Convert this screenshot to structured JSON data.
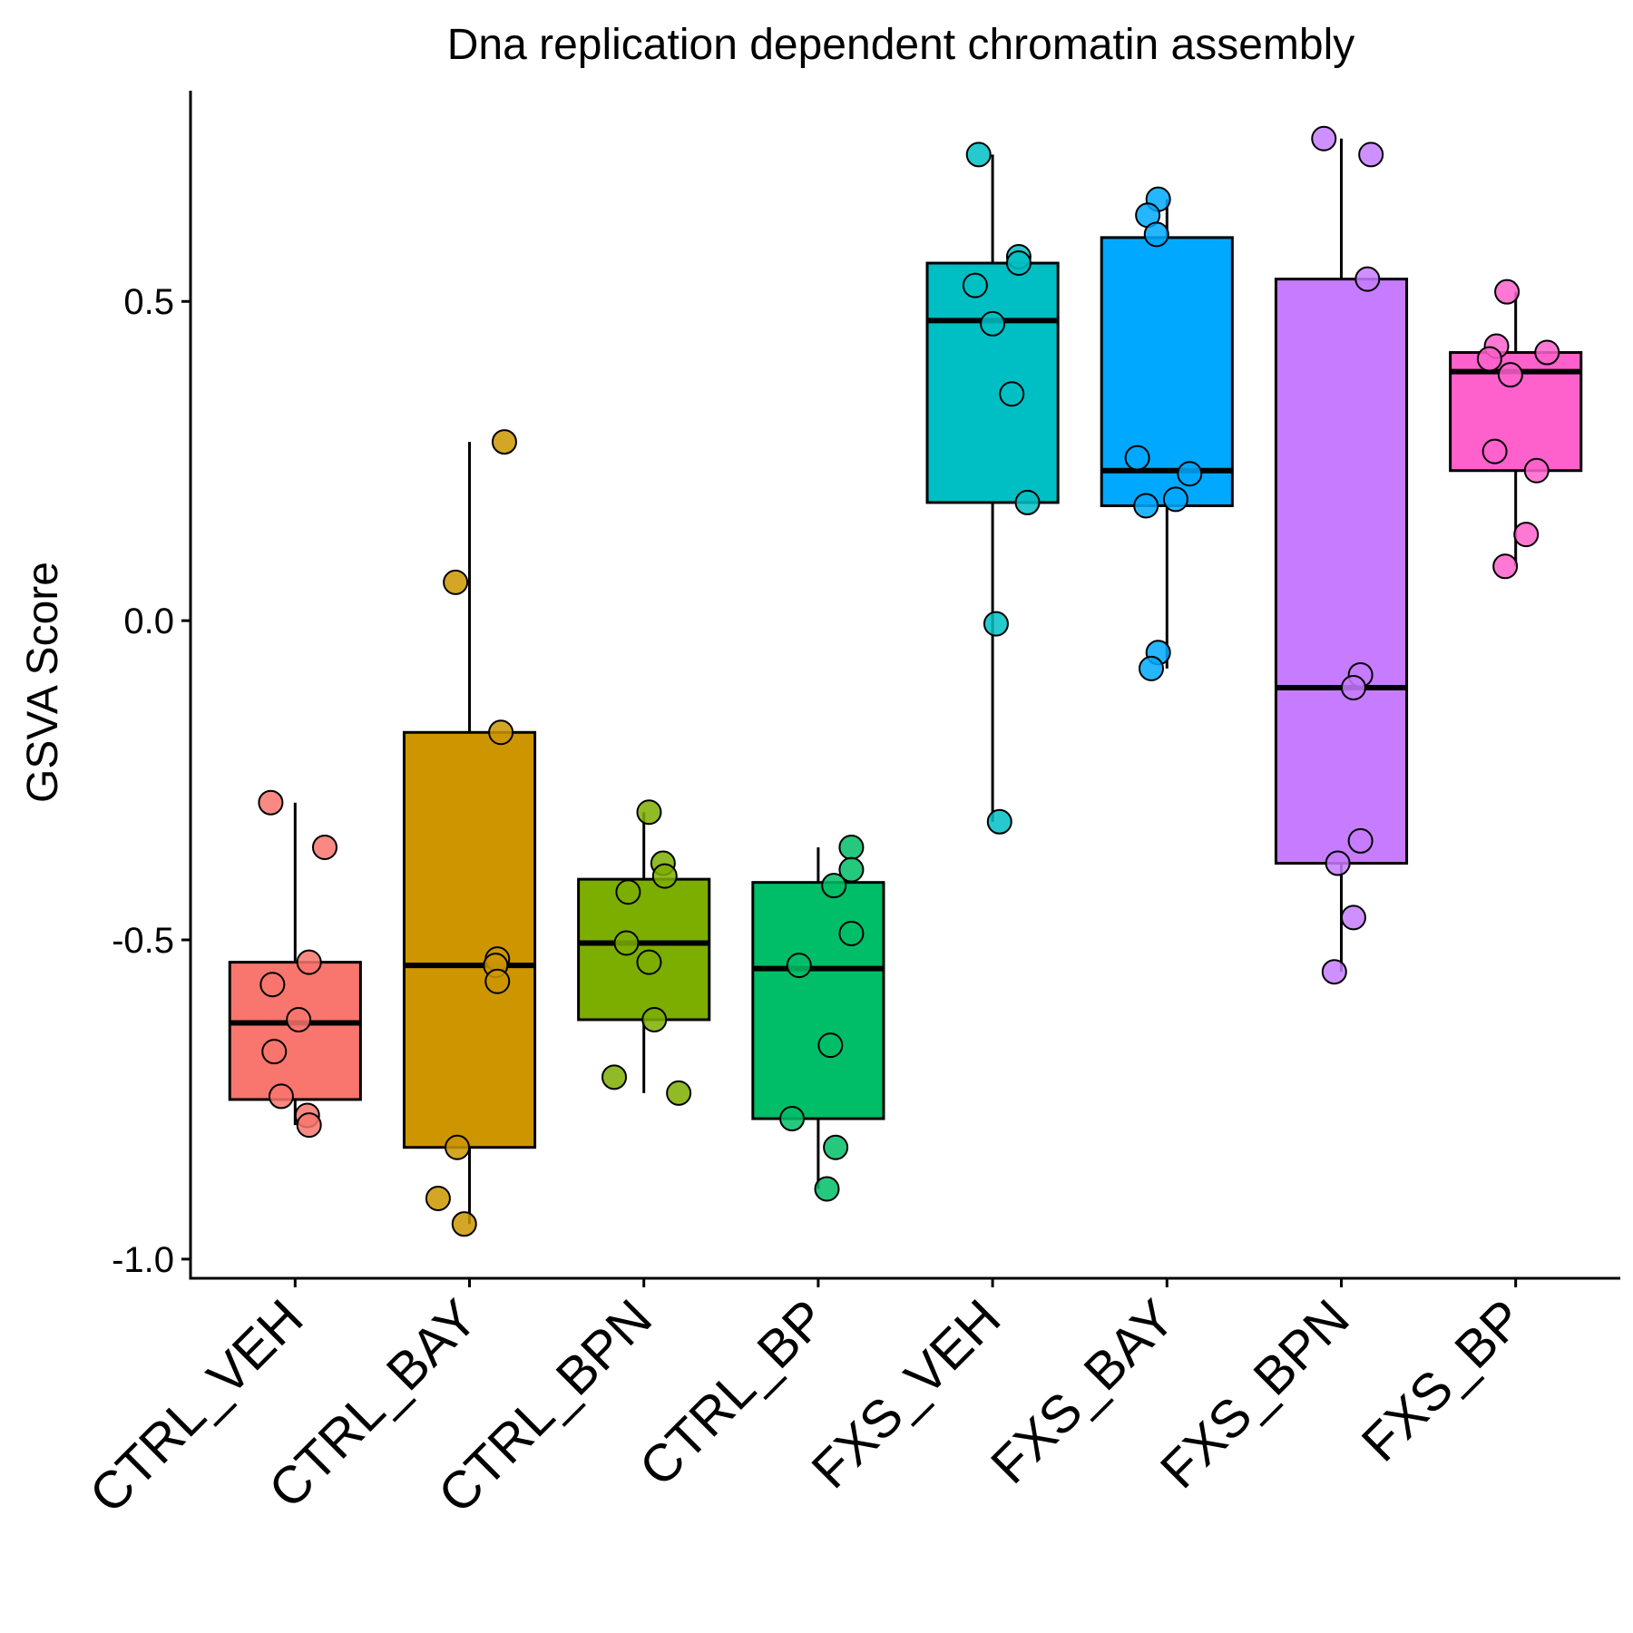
{
  "chart_data": {
    "type": "box",
    "title": "Dna replication dependent chromatin assembly",
    "xlabel": "",
    "ylabel": "GSVA Score",
    "ylim": [
      -1.03,
      0.83
    ],
    "yticks": [
      -1.0,
      -0.5,
      0.0,
      0.5
    ],
    "ytick_labels": [
      "-1.0",
      "-0.5",
      "0.0",
      "0.5"
    ],
    "grid": false,
    "legend": "none",
    "categories": [
      "CTRL_VEH",
      "CTRL_BAY",
      "CTRL_BPN",
      "CTRL_BP",
      "FXS_VEH",
      "FXS_BAY",
      "FXS_BPN",
      "FXS_BP"
    ],
    "colors": [
      "#F8766D",
      "#CD9600",
      "#7CAE00",
      "#00BE67",
      "#00BFC4",
      "#00A9FF",
      "#C77CFF",
      "#FF61CC"
    ],
    "boxes": [
      {
        "name": "CTRL_VEH",
        "whisker_low": -0.79,
        "q1": -0.75,
        "median": -0.63,
        "q3": -0.535,
        "whisker_high": -0.285
      },
      {
        "name": "CTRL_BAY",
        "whisker_low": -0.945,
        "q1": -0.825,
        "median": -0.54,
        "q3": -0.175,
        "whisker_high": 0.28
      },
      {
        "name": "CTRL_BPN",
        "whisker_low": -0.74,
        "q1": -0.625,
        "median": -0.505,
        "q3": -0.405,
        "whisker_high": -0.3
      },
      {
        "name": "CTRL_BP",
        "whisker_low": -0.89,
        "q1": -0.78,
        "median": -0.545,
        "q3": -0.41,
        "whisker_high": -0.355
      },
      {
        "name": "FXS_VEH",
        "whisker_low": -0.315,
        "q1": 0.185,
        "median": 0.47,
        "q3": 0.56,
        "whisker_high": 0.73
      },
      {
        "name": "FXS_BAY",
        "whisker_low": -0.075,
        "q1": 0.18,
        "median": 0.235,
        "q3": 0.6,
        "whisker_high": 0.66
      },
      {
        "name": "FXS_BPN",
        "whisker_low": -0.55,
        "q1": -0.38,
        "median": -0.105,
        "q3": 0.535,
        "whisker_high": 0.755
      },
      {
        "name": "FXS_BP",
        "whisker_low": 0.085,
        "q1": 0.235,
        "median": 0.39,
        "q3": 0.42,
        "whisker_high": 0.515
      }
    ],
    "points": [
      {
        "group": "CTRL_VEH",
        "jitter": -0.14,
        "y": -0.285
      },
      {
        "group": "CTRL_VEH",
        "jitter": 0.17,
        "y": -0.355
      },
      {
        "group": "CTRL_VEH",
        "jitter": 0.08,
        "y": -0.535
      },
      {
        "group": "CTRL_VEH",
        "jitter": -0.13,
        "y": -0.57
      },
      {
        "group": "CTRL_VEH",
        "jitter": 0.02,
        "y": -0.625
      },
      {
        "group": "CTRL_VEH",
        "jitter": -0.12,
        "y": -0.675
      },
      {
        "group": "CTRL_VEH",
        "jitter": -0.08,
        "y": -0.745
      },
      {
        "group": "CTRL_VEH",
        "jitter": 0.07,
        "y": -0.775
      },
      {
        "group": "CTRL_VEH",
        "jitter": 0.08,
        "y": -0.79
      },
      {
        "group": "CTRL_BAY",
        "jitter": 0.2,
        "y": 0.28
      },
      {
        "group": "CTRL_BAY",
        "jitter": -0.08,
        "y": 0.06
      },
      {
        "group": "CTRL_BAY",
        "jitter": 0.18,
        "y": -0.175
      },
      {
        "group": "CTRL_BAY",
        "jitter": 0.16,
        "y": -0.53
      },
      {
        "group": "CTRL_BAY",
        "jitter": 0.15,
        "y": -0.54
      },
      {
        "group": "CTRL_BAY",
        "jitter": 0.16,
        "y": -0.565
      },
      {
        "group": "CTRL_BAY",
        "jitter": -0.07,
        "y": -0.825
      },
      {
        "group": "CTRL_BAY",
        "jitter": -0.18,
        "y": -0.905
      },
      {
        "group": "CTRL_BAY",
        "jitter": -0.03,
        "y": -0.945
      },
      {
        "group": "CTRL_BPN",
        "jitter": 0.03,
        "y": -0.3
      },
      {
        "group": "CTRL_BPN",
        "jitter": 0.11,
        "y": -0.38
      },
      {
        "group": "CTRL_BPN",
        "jitter": 0.12,
        "y": -0.4
      },
      {
        "group": "CTRL_BPN",
        "jitter": -0.09,
        "y": -0.425
      },
      {
        "group": "CTRL_BPN",
        "jitter": -0.1,
        "y": -0.505
      },
      {
        "group": "CTRL_BPN",
        "jitter": 0.03,
        "y": -0.535
      },
      {
        "group": "CTRL_BPN",
        "jitter": 0.06,
        "y": -0.625
      },
      {
        "group": "CTRL_BPN",
        "jitter": -0.17,
        "y": -0.715
      },
      {
        "group": "CTRL_BPN",
        "jitter": 0.2,
        "y": -0.74
      },
      {
        "group": "CTRL_BP",
        "jitter": 0.19,
        "y": -0.355
      },
      {
        "group": "CTRL_BP",
        "jitter": 0.19,
        "y": -0.39
      },
      {
        "group": "CTRL_BP",
        "jitter": 0.09,
        "y": -0.415
      },
      {
        "group": "CTRL_BP",
        "jitter": 0.19,
        "y": -0.49
      },
      {
        "group": "CTRL_BP",
        "jitter": -0.11,
        "y": -0.54
      },
      {
        "group": "CTRL_BP",
        "jitter": 0.07,
        "y": -0.665
      },
      {
        "group": "CTRL_BP",
        "jitter": -0.15,
        "y": -0.78
      },
      {
        "group": "CTRL_BP",
        "jitter": 0.1,
        "y": -0.825
      },
      {
        "group": "CTRL_BP",
        "jitter": 0.05,
        "y": -0.89
      },
      {
        "group": "FXS_VEH",
        "jitter": -0.08,
        "y": 0.73
      },
      {
        "group": "FXS_VEH",
        "jitter": 0.15,
        "y": 0.57
      },
      {
        "group": "FXS_VEH",
        "jitter": 0.15,
        "y": 0.56
      },
      {
        "group": "FXS_VEH",
        "jitter": -0.1,
        "y": 0.525
      },
      {
        "group": "FXS_VEH",
        "jitter": 0.0,
        "y": 0.465
      },
      {
        "group": "FXS_VEH",
        "jitter": 0.11,
        "y": 0.355
      },
      {
        "group": "FXS_VEH",
        "jitter": 0.2,
        "y": 0.185
      },
      {
        "group": "FXS_VEH",
        "jitter": 0.02,
        "y": -0.005
      },
      {
        "group": "FXS_VEH",
        "jitter": 0.04,
        "y": -0.315
      },
      {
        "group": "FXS_BAY",
        "jitter": -0.05,
        "y": 0.66
      },
      {
        "group": "FXS_BAY",
        "jitter": -0.11,
        "y": 0.635
      },
      {
        "group": "FXS_BAY",
        "jitter": -0.06,
        "y": 0.605
      },
      {
        "group": "FXS_BAY",
        "jitter": -0.17,
        "y": 0.255
      },
      {
        "group": "FXS_BAY",
        "jitter": 0.13,
        "y": 0.23
      },
      {
        "group": "FXS_BAY",
        "jitter": 0.05,
        "y": 0.19
      },
      {
        "group": "FXS_BAY",
        "jitter": -0.12,
        "y": 0.18
      },
      {
        "group": "FXS_BAY",
        "jitter": -0.05,
        "y": -0.05
      },
      {
        "group": "FXS_BAY",
        "jitter": -0.09,
        "y": -0.075
      },
      {
        "group": "FXS_BPN",
        "jitter": -0.1,
        "y": 0.755
      },
      {
        "group": "FXS_BPN",
        "jitter": 0.17,
        "y": 0.73
      },
      {
        "group": "FXS_BPN",
        "jitter": 0.15,
        "y": 0.535
      },
      {
        "group": "FXS_BPN",
        "jitter": 0.11,
        "y": -0.085
      },
      {
        "group": "FXS_BPN",
        "jitter": 0.07,
        "y": -0.105
      },
      {
        "group": "FXS_BPN",
        "jitter": 0.11,
        "y": -0.345
      },
      {
        "group": "FXS_BPN",
        "jitter": -0.02,
        "y": -0.38
      },
      {
        "group": "FXS_BPN",
        "jitter": 0.07,
        "y": -0.465
      },
      {
        "group": "FXS_BPN",
        "jitter": -0.04,
        "y": -0.55
      },
      {
        "group": "FXS_BP",
        "jitter": -0.05,
        "y": 0.515
      },
      {
        "group": "FXS_BP",
        "jitter": -0.11,
        "y": 0.43
      },
      {
        "group": "FXS_BP",
        "jitter": 0.18,
        "y": 0.42
      },
      {
        "group": "FXS_BP",
        "jitter": -0.15,
        "y": 0.41
      },
      {
        "group": "FXS_BP",
        "jitter": -0.03,
        "y": 0.385
      },
      {
        "group": "FXS_BP",
        "jitter": -0.12,
        "y": 0.265
      },
      {
        "group": "FXS_BP",
        "jitter": 0.12,
        "y": 0.235
      },
      {
        "group": "FXS_BP",
        "jitter": 0.06,
        "y": 0.135
      },
      {
        "group": "FXS_BP",
        "jitter": -0.06,
        "y": 0.085
      }
    ]
  }
}
